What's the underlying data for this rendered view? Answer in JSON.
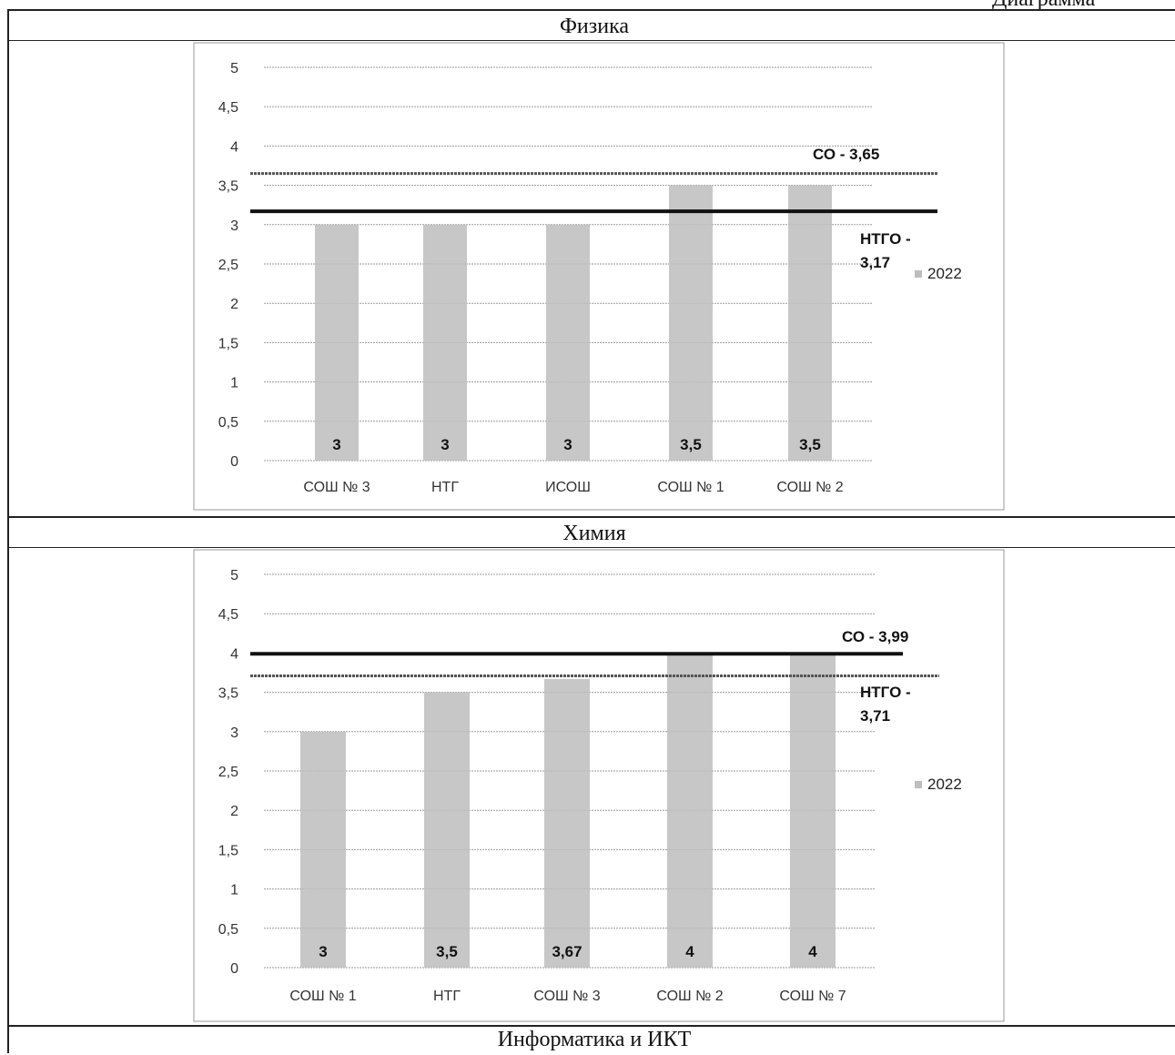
{
  "page": {
    "top_right_label": "Диаграмма",
    "sections": [
      {
        "title": "Физика"
      },
      {
        "title": "Химия"
      },
      {
        "title": "Информатика и ИКТ"
      }
    ]
  },
  "chart_data": [
    {
      "type": "bar",
      "title": "",
      "categories": [
        "СОШ № 3",
        "НТГ",
        "ИСОШ",
        "СОШ № 1",
        "СОШ № 2"
      ],
      "series": [
        {
          "name": "2022",
          "values": [
            3,
            3,
            3,
            3.5,
            3.5
          ]
        }
      ],
      "data_labels": [
        "3",
        "3",
        "3",
        "3,5",
        "3,5"
      ],
      "yticks": [
        "0",
        "0,5",
        "1",
        "1,5",
        "2",
        "2,5",
        "3",
        "3,5",
        "4",
        "4,5",
        "5"
      ],
      "ylim": [
        0,
        5
      ],
      "reference_lines": [
        {
          "label_line1": "СО - 3,65",
          "label_line2": "",
          "value": 3.65,
          "style": "dotted"
        },
        {
          "label_line1": "НТГО -",
          "label_line2": "3,17",
          "value": 3.17,
          "style": "solid"
        }
      ],
      "legend": {
        "entry": "2022",
        "position": "right"
      },
      "grid": true,
      "bar_color": "#bdbdbd",
      "line_color": "#111111"
    },
    {
      "type": "bar",
      "title": "",
      "categories": [
        "СОШ № 1",
        "НТГ",
        "СОШ № 3",
        "СОШ № 2",
        "СОШ № 7"
      ],
      "series": [
        {
          "name": "2022",
          "values": [
            3,
            3.5,
            3.67,
            4,
            4
          ]
        }
      ],
      "data_labels": [
        "3",
        "3,5",
        "3,67",
        "4",
        "4"
      ],
      "yticks": [
        "0",
        "0,5",
        "1",
        "1,5",
        "2",
        "2,5",
        "3",
        "3,5",
        "4",
        "4,5",
        "5"
      ],
      "ylim": [
        0,
        5
      ],
      "reference_lines": [
        {
          "label_line1": "СО - 3,99",
          "label_line2": "",
          "value": 3.99,
          "style": "solid"
        },
        {
          "label_line1": "НТГО -",
          "label_line2": "3,71",
          "value": 3.71,
          "style": "dotted"
        }
      ],
      "legend": {
        "entry": "2022",
        "position": "right"
      },
      "grid": true,
      "bar_color": "#bdbdbd",
      "line_color": "#111111"
    }
  ]
}
